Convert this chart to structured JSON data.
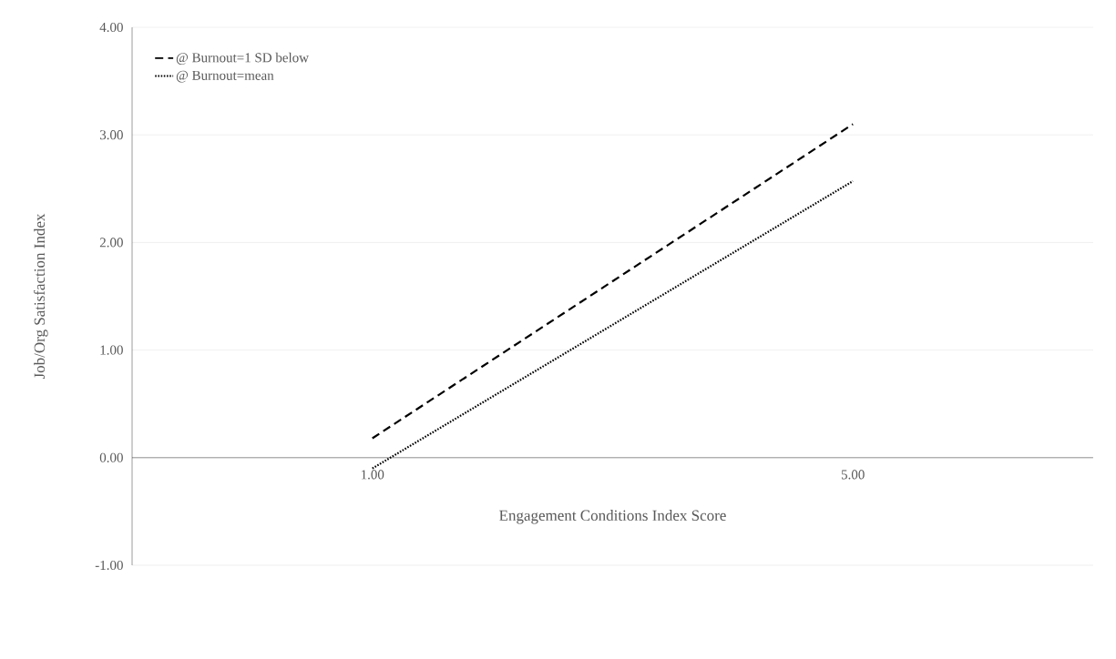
{
  "chart_data": {
    "type": "line",
    "xlabel": "Engagement Conditions Index Score",
    "ylabel": "Job/Org Satisfaction Index",
    "x": [
      1,
      5
    ],
    "series": [
      {
        "name": "@ Burnout=1 SD below",
        "color": "#000000",
        "line_style": "dashed",
        "values": [
          0.18,
          3.1
        ]
      },
      {
        "name": "@ Burnout=mean",
        "color": "#000000",
        "line_style": "dotted",
        "values": [
          -0.1,
          2.57
        ]
      }
    ],
    "xlim": [
      -1,
      7
    ],
    "xticks": [
      {
        "value": 1,
        "label": "1.00"
      },
      {
        "value": 5,
        "label": "5.00"
      }
    ],
    "ylim": [
      -1,
      4
    ],
    "yticks": [
      {
        "value": -1,
        "label": "-1.00"
      },
      {
        "value": 0,
        "label": "0.00"
      },
      {
        "value": 1,
        "label": "1.00"
      },
      {
        "value": 2,
        "label": "2.00"
      },
      {
        "value": 3,
        "label": "3.00"
      },
      {
        "value": 4,
        "label": "4.00"
      }
    ],
    "grid": "y",
    "legend": "top left",
    "marker": "none"
  }
}
